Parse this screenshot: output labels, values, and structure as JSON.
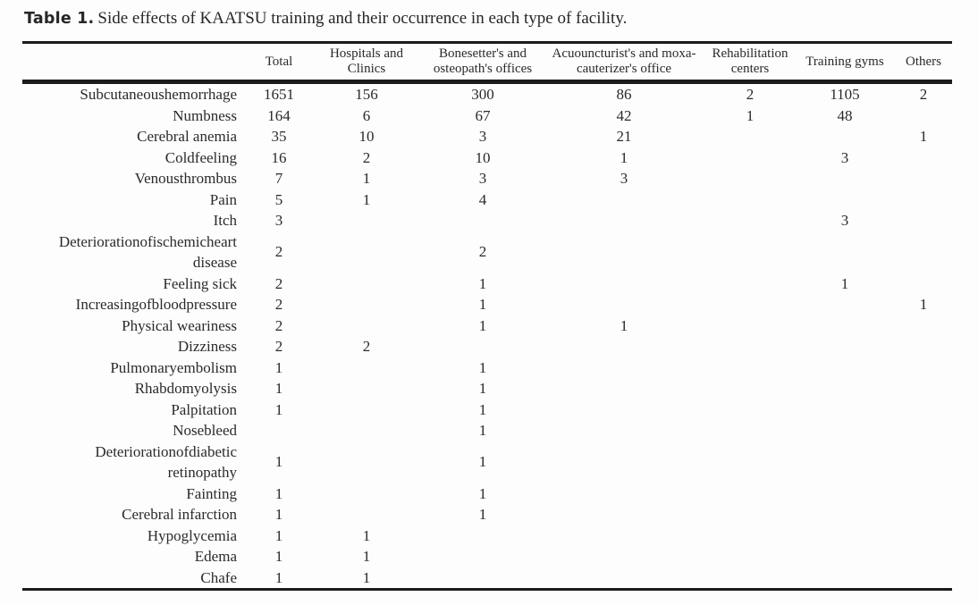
{
  "caption": {
    "label": "Table 1.",
    "text": "Side effects of KAATSU training and their occurrence in each type of facility."
  },
  "table": {
    "columns": [
      {
        "key": "row-label",
        "label": ""
      },
      {
        "key": "total",
        "label": "Total"
      },
      {
        "key": "hospitals-clinics",
        "label": "Hospitals and Clinics"
      },
      {
        "key": "bonesetters-osteopaths",
        "label": "Bonesetter's and osteopath's offices"
      },
      {
        "key": "acupuncturists-moxa",
        "label": "Acuouncturist's and moxa-cauterizer's office"
      },
      {
        "key": "rehabilitation-centers",
        "label": "Rehabilitation centers"
      },
      {
        "key": "training-gyms",
        "label": "Training gyms"
      },
      {
        "key": "others",
        "label": "Others"
      }
    ],
    "rows": [
      {
        "label": "Subcutaneoushemorrhage",
        "values": [
          "1651",
          "156",
          "300",
          "86",
          "2",
          "1105",
          "2"
        ]
      },
      {
        "label": "Numbness",
        "values": [
          "164",
          "6",
          "67",
          "42",
          "1",
          "48",
          ""
        ]
      },
      {
        "label": "Cerebral anemia",
        "values": [
          "35",
          "10",
          "3",
          "21",
          "",
          "",
          "1"
        ]
      },
      {
        "label": "Coldfeeling",
        "values": [
          "16",
          "2",
          "10",
          "1",
          "",
          "3",
          ""
        ]
      },
      {
        "label": "Venousthrombus",
        "values": [
          "7",
          "1",
          "3",
          "3",
          "",
          "",
          ""
        ]
      },
      {
        "label": "Pain",
        "values": [
          "5",
          "1",
          "4",
          "",
          "",
          "",
          ""
        ]
      },
      {
        "label": "Itch",
        "values": [
          "3",
          "",
          "",
          "",
          "",
          "3",
          ""
        ]
      },
      {
        "label": "Deteriorationofischemicheart disease",
        "values": [
          "2",
          "",
          "2",
          "",
          "",
          "",
          ""
        ]
      },
      {
        "label": "Feeling sick",
        "values": [
          "2",
          "",
          "1",
          "",
          "",
          "1",
          ""
        ]
      },
      {
        "label": "Increasingofbloodpressure",
        "values": [
          "2",
          "",
          "1",
          "",
          "",
          "",
          "1"
        ]
      },
      {
        "label": "Physical weariness",
        "values": [
          "2",
          "",
          "1",
          "1",
          "",
          "",
          ""
        ]
      },
      {
        "label": "Dizziness",
        "values": [
          "2",
          "2",
          "",
          "",
          "",
          "",
          ""
        ]
      },
      {
        "label": "Pulmonaryembolism",
        "values": [
          "1",
          "",
          "1",
          "",
          "",
          "",
          ""
        ]
      },
      {
        "label": "Rhabdomyolysis",
        "values": [
          "1",
          "",
          "1",
          "",
          "",
          "",
          ""
        ]
      },
      {
        "label": "Palpitation",
        "values": [
          "1",
          "",
          "1",
          "",
          "",
          "",
          ""
        ]
      },
      {
        "label": "Nosebleed",
        "values": [
          "",
          "",
          "1",
          "",
          "",
          "",
          ""
        ]
      },
      {
        "label": "Deteriorationofdiabetic retinopathy",
        "values": [
          "1",
          "",
          "1",
          "",
          "",
          "",
          ""
        ]
      },
      {
        "label": "Fainting",
        "values": [
          "1",
          "",
          "1",
          "",
          "",
          "",
          ""
        ]
      },
      {
        "label": "Cerebral infarction",
        "values": [
          "1",
          "",
          "1",
          "",
          "",
          "",
          ""
        ]
      },
      {
        "label": "Hypoglycemia",
        "values": [
          "1",
          "1",
          "",
          "",
          "",
          "",
          ""
        ]
      },
      {
        "label": "Edema",
        "values": [
          "1",
          "1",
          "",
          "",
          "",
          "",
          ""
        ]
      },
      {
        "label": "Chafe",
        "values": [
          "1",
          "1",
          "",
          "",
          "",
          "",
          ""
        ]
      }
    ]
  },
  "colors": {
    "text": "#2a2a2a",
    "rule": "#1c1c1c",
    "background": "#fdfdfd"
  }
}
